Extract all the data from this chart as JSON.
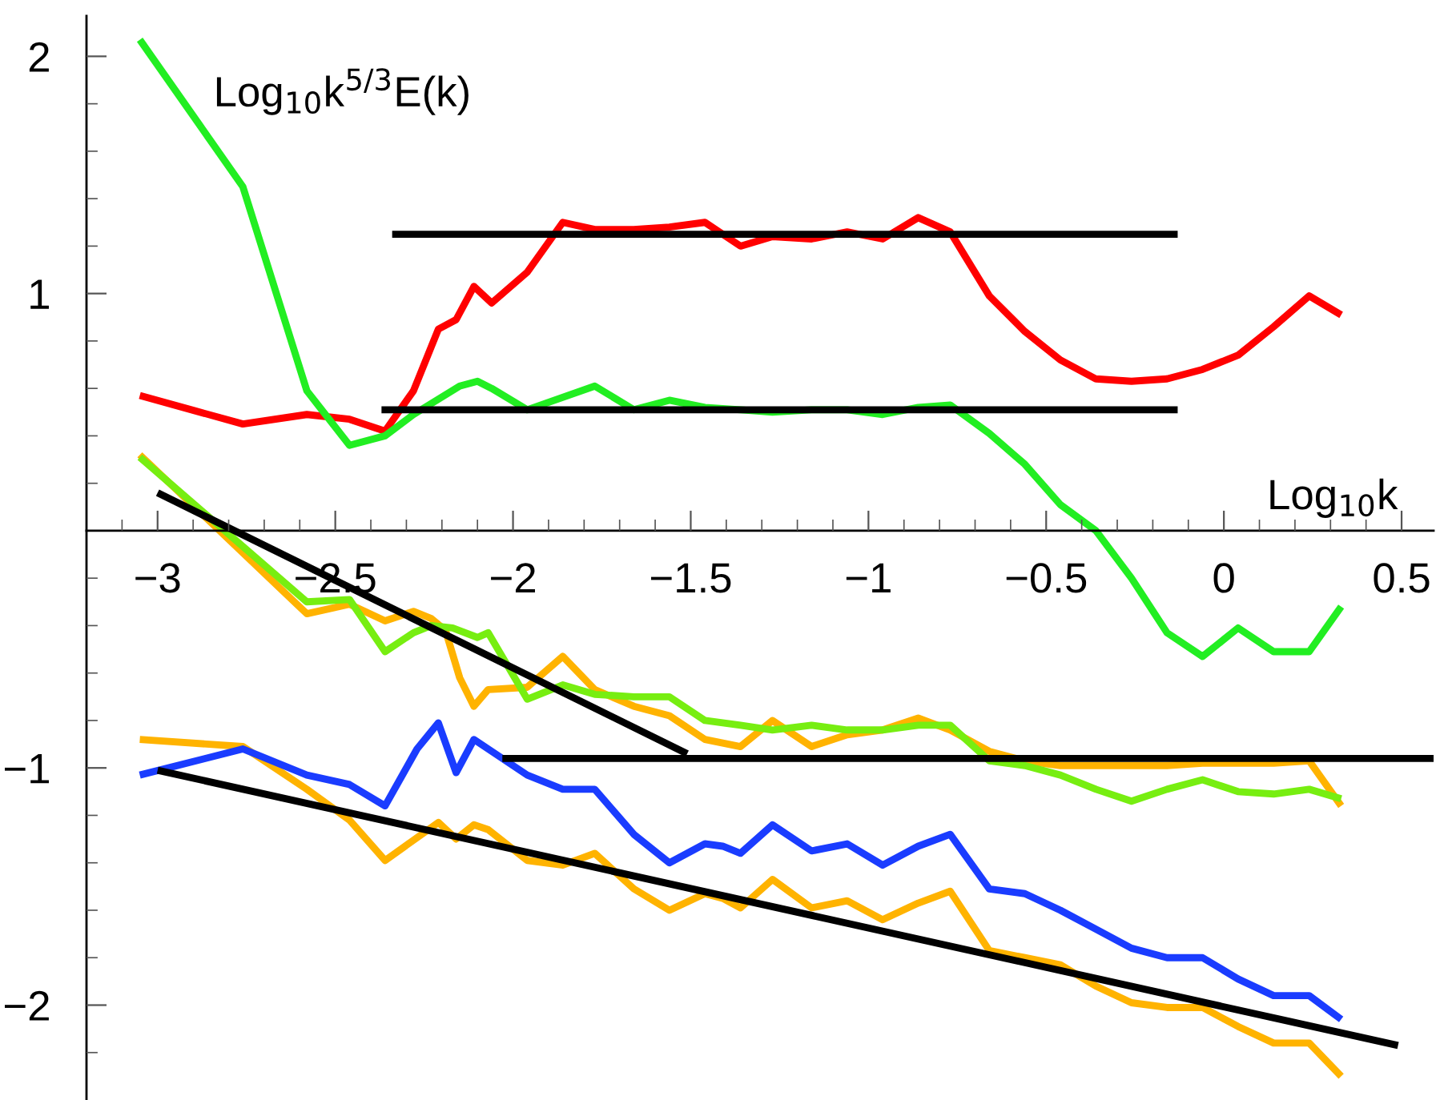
{
  "chart_data": {
    "type": "line",
    "xlabel": "Log$_{10}$k",
    "ylabel": "Log$_{10}$k$^{5/3}$E(k)",
    "xlim": [
      -3.2,
      0.59
    ],
    "ylim": [
      -2.4,
      2.17
    ],
    "xticks": [
      {
        "value": -3,
        "label": "−3"
      },
      {
        "value": -2.5,
        "label": "−2.5"
      },
      {
        "value": -2,
        "label": "−2"
      },
      {
        "value": -1.5,
        "label": "−1.5"
      },
      {
        "value": -1,
        "label": "−1"
      },
      {
        "value": -0.5,
        "label": "−0.5"
      },
      0,
      0.5,
      {
        "value": -3.1,
        "label": null
      },
      {
        "value": -2.9,
        "label": null
      },
      {
        "value": -2.8,
        "label": null
      },
      {
        "value": -2.7,
        "label": null
      },
      {
        "value": -2.6,
        "label": null
      },
      {
        "value": -2.4,
        "label": null
      },
      {
        "value": -2.3,
        "label": null
      },
      {
        "value": -2.2,
        "label": null
      },
      {
        "value": -2.1,
        "label": null
      },
      {
        "value": -1.9,
        "label": null
      },
      {
        "value": -1.8,
        "label": null
      },
      {
        "value": -1.7,
        "label": null
      },
      {
        "value": -1.6,
        "label": null
      },
      {
        "value": -1.4,
        "label": null
      },
      {
        "value": -1.3,
        "label": null
      },
      {
        "value": -1.2,
        "label": null
      },
      {
        "value": -1.1,
        "label": null
      },
      {
        "value": -0.9,
        "label": null
      },
      {
        "value": -0.8,
        "label": null
      },
      {
        "value": -0.7,
        "label": null
      },
      {
        "value": -0.6,
        "label": null
      },
      {
        "value": -0.4,
        "label": null
      },
      {
        "value": -0.3,
        "label": null
      },
      {
        "value": -0.2,
        "label": null
      },
      {
        "value": -0.1,
        "label": null
      },
      {
        "value": 0.1,
        "label": null
      },
      {
        "value": 0.2,
        "label": null
      },
      {
        "value": 0.3,
        "label": null
      },
      {
        "value": 0.4,
        "label": null
      }
    ],
    "yticks": [
      {
        "value": -2,
        "label": "−2"
      },
      {
        "value": -1,
        "label": "−1"
      },
      1,
      2,
      {
        "value": -2.2,
        "label": null
      },
      {
        "value": -1.8,
        "label": null
      },
      {
        "value": -1.6,
        "label": null
      },
      {
        "value": -1.4,
        "label": null
      },
      {
        "value": -1.2,
        "label": null
      },
      {
        "value": -0.8,
        "label": null
      },
      {
        "value": -0.6,
        "label": null
      },
      {
        "value": -0.4,
        "label": null
      },
      {
        "value": -0.2,
        "label": null
      },
      {
        "value": 0.2,
        "label": null
      },
      {
        "value": 0.4,
        "label": null
      },
      {
        "value": 0.6,
        "label": null
      },
      {
        "value": 0.8,
        "label": null
      },
      {
        "value": 1.2,
        "label": null
      },
      {
        "value": 1.4,
        "label": null
      },
      {
        "value": 1.6,
        "label": null
      },
      {
        "value": 1.8,
        "label": null
      }
    ],
    "grid": false,
    "legend": false,
    "marker": "none",
    "line_style": "solid",
    "series": [
      {
        "color": "#ff0000",
        "x": [
          -3.05,
          -2.76,
          -2.58,
          -2.46,
          -2.36,
          -2.28,
          -2.21,
          -2.16,
          -2.11,
          -2.06,
          -1.96,
          -1.86,
          -1.77,
          -1.66,
          -1.56,
          -1.46,
          -1.36,
          -1.27,
          -1.16,
          -1.06,
          -0.96,
          -0.86,
          -0.77,
          -0.66,
          -0.56,
          -0.46,
          -0.36,
          -0.26,
          -0.16,
          -0.06,
          0.04,
          0.14,
          0.24,
          0.33
        ],
        "values": [
          0.57,
          0.45,
          0.49,
          0.47,
          0.42,
          0.59,
          0.85,
          0.89,
          1.03,
          0.96,
          1.09,
          1.3,
          1.27,
          1.27,
          1.28,
          1.3,
          1.2,
          1.24,
          1.23,
          1.26,
          1.23,
          1.32,
          1.26,
          0.99,
          0.84,
          0.72,
          0.64,
          0.63,
          0.64,
          0.68,
          0.74,
          0.86,
          0.99,
          0.91
        ]
      },
      {
        "color": "#22ee22",
        "x": [
          -3.05,
          -2.76,
          -2.58,
          -2.46,
          -2.36,
          -2.28,
          -2.15,
          -2.1,
          -2.06,
          -1.96,
          -1.77,
          -1.66,
          -1.56,
          -1.46,
          -1.36,
          -1.27,
          -1.16,
          -1.06,
          -0.96,
          -0.86,
          -0.77,
          -0.66,
          -0.56,
          -0.46,
          -0.36,
          -0.26,
          -0.16,
          -0.06,
          0.04,
          0.14,
          0.24,
          0.33
        ],
        "values": [
          2.07,
          1.45,
          0.59,
          0.36,
          0.4,
          0.49,
          0.61,
          0.63,
          0.6,
          0.51,
          0.61,
          0.51,
          0.55,
          0.52,
          0.51,
          0.5,
          0.51,
          0.51,
          0.49,
          0.52,
          0.53,
          0.41,
          0.28,
          0.11,
          0.0,
          -0.2,
          -0.43,
          -0.53,
          -0.41,
          -0.51,
          -0.51,
          -0.32
        ]
      },
      {
        "color": "#ffb300",
        "x": [
          -3.05,
          -2.58,
          -2.46,
          -2.36,
          -2.28,
          -2.23,
          -2.19,
          -2.15,
          -2.11,
          -2.07,
          -1.96,
          -1.86,
          -1.77,
          -1.66,
          -1.56,
          -1.46,
          -1.36,
          -1.27,
          -1.16,
          -1.06,
          -0.96,
          -0.86,
          -0.77,
          -0.66,
          -0.56,
          -0.46,
          -0.36,
          -0.26,
          -0.16,
          -0.06,
          0.04,
          0.14,
          0.24,
          0.33
        ],
        "values": [
          0.32,
          -0.35,
          -0.31,
          -0.38,
          -0.34,
          -0.37,
          -0.42,
          -0.62,
          -0.74,
          -0.67,
          -0.66,
          -0.53,
          -0.67,
          -0.74,
          -0.78,
          -0.88,
          -0.91,
          -0.8,
          -0.91,
          -0.86,
          -0.84,
          -0.79,
          -0.84,
          -0.93,
          -0.97,
          -0.99,
          -0.99,
          -0.99,
          -0.99,
          -0.98,
          -0.98,
          -0.98,
          -0.97,
          -1.16
        ]
      },
      {
        "color": "#77ee11",
        "x": [
          -3.05,
          -2.58,
          -2.46,
          -2.36,
          -2.28,
          -2.23,
          -2.17,
          -2.1,
          -2.07,
          -1.96,
          -1.86,
          -1.77,
          -1.66,
          -1.56,
          -1.46,
          -1.36,
          -1.27,
          -1.16,
          -1.06,
          -0.96,
          -0.86,
          -0.77,
          -0.66,
          -0.56,
          -0.46,
          -0.36,
          -0.26,
          -0.16,
          -0.06,
          0.04,
          0.14,
          0.24,
          0.33
        ],
        "values": [
          0.31,
          -0.3,
          -0.29,
          -0.51,
          -0.43,
          -0.4,
          -0.41,
          -0.45,
          -0.43,
          -0.71,
          -0.65,
          -0.69,
          -0.7,
          -0.7,
          -0.8,
          -0.82,
          -0.84,
          -0.82,
          -0.84,
          -0.84,
          -0.82,
          -0.82,
          -0.97,
          -0.99,
          -1.03,
          -1.09,
          -1.14,
          -1.09,
          -1.05,
          -1.1,
          -1.11,
          -1.09,
          -1.13
        ]
      },
      {
        "color": "#ffb300",
        "x": [
          -3.05,
          -2.76,
          -2.58,
          -2.46,
          -2.36,
          -2.21,
          -2.16,
          -2.11,
          -2.07,
          -1.96,
          -1.86,
          -1.77,
          -1.66,
          -1.56,
          -1.46,
          -1.41,
          -1.36,
          -1.27,
          -1.16,
          -1.06,
          -0.96,
          -0.86,
          -0.77,
          -0.66,
          -0.56,
          -0.46,
          -0.36,
          -0.26,
          -0.16,
          -0.06,
          0.04,
          0.14,
          0.24,
          0.33
        ],
        "values": [
          -0.88,
          -0.91,
          -1.09,
          -1.22,
          -1.39,
          -1.23,
          -1.3,
          -1.24,
          -1.26,
          -1.39,
          -1.41,
          -1.36,
          -1.51,
          -1.6,
          -1.53,
          -1.55,
          -1.59,
          -1.47,
          -1.59,
          -1.56,
          -1.64,
          -1.57,
          -1.52,
          -1.77,
          -1.8,
          -1.83,
          -1.92,
          -1.99,
          -2.01,
          -2.01,
          -2.09,
          -2.16,
          -2.16,
          -2.3
        ]
      },
      {
        "color": "#1a3cff",
        "x": [
          -3.05,
          -2.76,
          -2.58,
          -2.46,
          -2.36,
          -2.27,
          -2.21,
          -2.16,
          -2.11,
          -1.96,
          -1.86,
          -1.77,
          -1.66,
          -1.56,
          -1.46,
          -1.41,
          -1.36,
          -1.27,
          -1.16,
          -1.06,
          -0.96,
          -0.86,
          -0.77,
          -0.66,
          -0.56,
          -0.46,
          -0.36,
          -0.26,
          -0.16,
          -0.06,
          0.04,
          0.14,
          0.24,
          0.33
        ],
        "values": [
          -1.03,
          -0.92,
          -1.03,
          -1.07,
          -1.16,
          -0.92,
          -0.81,
          -1.02,
          -0.88,
          -1.03,
          -1.09,
          -1.09,
          -1.28,
          -1.4,
          -1.32,
          -1.33,
          -1.36,
          -1.24,
          -1.35,
          -1.32,
          -1.41,
          -1.33,
          -1.28,
          -1.51,
          -1.53,
          -1.6,
          -1.68,
          -1.76,
          -1.8,
          -1.8,
          -1.89,
          -1.96,
          -1.96,
          -2.06
        ]
      },
      {
        "color": "#000000",
        "x": [
          -2.34,
          -0.13
        ],
        "values": [
          1.25,
          1.25
        ]
      },
      {
        "color": "#000000",
        "x": [
          -2.37,
          -0.13
        ],
        "values": [
          0.51,
          0.51
        ]
      },
      {
        "color": "#000000",
        "x": [
          -2.03,
          0.59
        ],
        "values": [
          -0.96,
          -0.96
        ]
      },
      {
        "color": "#000000",
        "x": [
          -3.0,
          -1.51
        ],
        "values": [
          0.16,
          -0.94
        ]
      },
      {
        "color": "#000000",
        "x": [
          -3.0,
          0.49
        ],
        "values": [
          -1.01,
          -2.17
        ]
      }
    ]
  }
}
